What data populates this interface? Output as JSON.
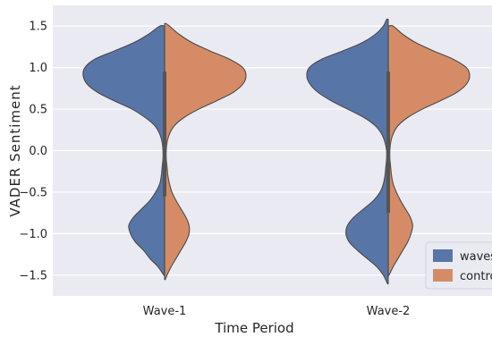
{
  "chart_data": {
    "type": "violin",
    "title": "",
    "xlabel": "Time Period",
    "ylabel": "VADER Sentiment",
    "categories": [
      "Wave-1",
      "Wave-2"
    ],
    "ylim": [
      -1.75,
      1.75
    ],
    "yticks": [
      -1.5,
      -1.0,
      -0.5,
      0.0,
      0.5,
      1.0,
      1.5
    ],
    "ytick_labels": [
      "−1.5",
      "−1.0",
      "−0.5",
      "0.0",
      "0.5",
      "1.0",
      "1.5"
    ],
    "grid": true,
    "legend_position": "lower-right",
    "colors": {
      "background": "#eaeaf2",
      "grid": "#ffffff",
      "waves": "#5875a8",
      "control": "#d58c66",
      "outline": "#4a4a4a",
      "inner_box": "#555555"
    },
    "series": [
      {
        "name": "waves",
        "side": "left",
        "violins": [
          {
            "category": "Wave-1",
            "min": -1.5,
            "max": 1.5,
            "profile": [
              [
                -1.5,
                0.01
              ],
              [
                -1.4,
                0.08
              ],
              [
                -1.3,
                0.18
              ],
              [
                -1.2,
                0.26
              ],
              [
                -1.1,
                0.36
              ],
              [
                -1.0,
                0.42
              ],
              [
                -0.9,
                0.44
              ],
              [
                -0.8,
                0.38
              ],
              [
                -0.7,
                0.28
              ],
              [
                -0.6,
                0.18
              ],
              [
                -0.5,
                0.11
              ],
              [
                -0.4,
                0.06
              ],
              [
                -0.3,
                0.04
              ],
              [
                -0.2,
                0.03
              ],
              [
                -0.1,
                0.02
              ],
              [
                0.0,
                0.02
              ],
              [
                0.1,
                0.03
              ],
              [
                0.2,
                0.06
              ],
              [
                0.3,
                0.12
              ],
              [
                0.4,
                0.24
              ],
              [
                0.5,
                0.4
              ],
              [
                0.6,
                0.62
              ],
              [
                0.7,
                0.82
              ],
              [
                0.8,
                0.95
              ],
              [
                0.9,
                1.0
              ],
              [
                1.0,
                0.98
              ],
              [
                1.1,
                0.86
              ],
              [
                1.2,
                0.62
              ],
              [
                1.3,
                0.38
              ],
              [
                1.4,
                0.2
              ],
              [
                1.5,
                0.06
              ]
            ],
            "box": {
              "q1": -0.55,
              "median": 0.0,
              "q3": 0.95,
              "whisker_low": -1.5,
              "whisker_high": 1.5
            }
          },
          {
            "category": "Wave-2",
            "min": -1.6,
            "max": 1.58,
            "profile": [
              [
                -1.6,
                0.01
              ],
              [
                -1.5,
                0.06
              ],
              [
                -1.4,
                0.14
              ],
              [
                -1.3,
                0.26
              ],
              [
                -1.2,
                0.38
              ],
              [
                -1.1,
                0.48
              ],
              [
                -1.0,
                0.52
              ],
              [
                -0.9,
                0.5
              ],
              [
                -0.8,
                0.42
              ],
              [
                -0.7,
                0.3
              ],
              [
                -0.6,
                0.18
              ],
              [
                -0.5,
                0.1
              ],
              [
                -0.4,
                0.06
              ],
              [
                -0.3,
                0.04
              ],
              [
                -0.2,
                0.03
              ],
              [
                -0.1,
                0.02
              ],
              [
                0.0,
                0.02
              ],
              [
                0.1,
                0.04
              ],
              [
                0.2,
                0.08
              ],
              [
                0.3,
                0.16
              ],
              [
                0.4,
                0.3
              ],
              [
                0.5,
                0.5
              ],
              [
                0.6,
                0.7
              ],
              [
                0.7,
                0.86
              ],
              [
                0.8,
                0.96
              ],
              [
                0.9,
                1.0
              ],
              [
                1.0,
                0.97
              ],
              [
                1.1,
                0.82
              ],
              [
                1.2,
                0.56
              ],
              [
                1.3,
                0.32
              ],
              [
                1.4,
                0.16
              ],
              [
                1.5,
                0.06
              ],
              [
                1.58,
                0.02
              ]
            ],
            "box": {
              "q1": -0.75,
              "median": 0.0,
              "q3": 0.95,
              "whisker_low": -1.5,
              "whisker_high": 1.5
            }
          }
        ]
      },
      {
        "name": "control",
        "side": "right",
        "violins": [
          {
            "category": "Wave-1",
            "min": -1.55,
            "max": 1.53,
            "profile": [
              [
                -1.55,
                0.01
              ],
              [
                -1.5,
                0.03
              ],
              [
                -1.4,
                0.08
              ],
              [
                -1.3,
                0.14
              ],
              [
                -1.2,
                0.2
              ],
              [
                -1.1,
                0.26
              ],
              [
                -1.0,
                0.3
              ],
              [
                -0.9,
                0.3
              ],
              [
                -0.8,
                0.26
              ],
              [
                -0.7,
                0.2
              ],
              [
                -0.6,
                0.14
              ],
              [
                -0.5,
                0.09
              ],
              [
                -0.4,
                0.06
              ],
              [
                -0.3,
                0.04
              ],
              [
                -0.2,
                0.03
              ],
              [
                -0.1,
                0.02
              ],
              [
                0.0,
                0.02
              ],
              [
                0.1,
                0.03
              ],
              [
                0.2,
                0.06
              ],
              [
                0.3,
                0.12
              ],
              [
                0.4,
                0.24
              ],
              [
                0.5,
                0.42
              ],
              [
                0.6,
                0.64
              ],
              [
                0.7,
                0.84
              ],
              [
                0.8,
                0.96
              ],
              [
                0.9,
                1.0
              ],
              [
                1.0,
                0.96
              ],
              [
                1.1,
                0.8
              ],
              [
                1.2,
                0.56
              ],
              [
                1.3,
                0.34
              ],
              [
                1.4,
                0.18
              ],
              [
                1.5,
                0.06
              ],
              [
                1.53,
                0.02
              ]
            ],
            "box": {
              "q1": -0.55,
              "median": 0.0,
              "q3": 0.95,
              "whisker_low": -1.5,
              "whisker_high": 1.5
            }
          },
          {
            "category": "Wave-2",
            "min": -1.5,
            "max": 1.5,
            "profile": [
              [
                -1.5,
                0.01
              ],
              [
                -1.4,
                0.06
              ],
              [
                -1.3,
                0.12
              ],
              [
                -1.2,
                0.18
              ],
              [
                -1.1,
                0.24
              ],
              [
                -1.0,
                0.28
              ],
              [
                -0.9,
                0.3
              ],
              [
                -0.8,
                0.27
              ],
              [
                -0.7,
                0.21
              ],
              [
                -0.6,
                0.15
              ],
              [
                -0.5,
                0.1
              ],
              [
                -0.4,
                0.06
              ],
              [
                -0.3,
                0.04
              ],
              [
                -0.2,
                0.03
              ],
              [
                -0.1,
                0.02
              ],
              [
                0.0,
                0.02
              ],
              [
                0.1,
                0.03
              ],
              [
                0.2,
                0.06
              ],
              [
                0.3,
                0.12
              ],
              [
                0.4,
                0.24
              ],
              [
                0.5,
                0.42
              ],
              [
                0.6,
                0.64
              ],
              [
                0.7,
                0.84
              ],
              [
                0.8,
                0.96
              ],
              [
                0.9,
                1.0
              ],
              [
                1.0,
                0.96
              ],
              [
                1.1,
                0.8
              ],
              [
                1.2,
                0.56
              ],
              [
                1.3,
                0.34
              ],
              [
                1.4,
                0.18
              ],
              [
                1.5,
                0.06
              ]
            ],
            "box": {
              "q1": -0.75,
              "median": 0.0,
              "q3": 0.95,
              "whisker_low": -1.5,
              "whisker_high": 1.5
            }
          }
        ]
      }
    ]
  }
}
